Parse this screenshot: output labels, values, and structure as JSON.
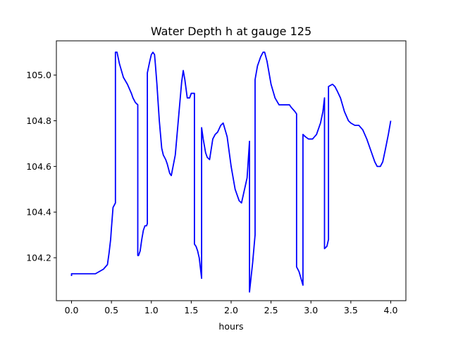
{
  "chart_data": {
    "type": "line",
    "title": "Water Depth h at gauge 125",
    "xlabel": "hours",
    "ylabel": "",
    "xlim": [
      -0.19,
      4.19
    ],
    "ylim": [
      104.012,
      105.15
    ],
    "xticks": [
      0.0,
      0.5,
      1.0,
      1.5,
      2.0,
      2.5,
      3.0,
      3.5,
      4.0
    ],
    "xtick_labels": [
      "0.0",
      "0.5",
      "1.0",
      "1.5",
      "2.0",
      "2.5",
      "3.0",
      "3.5",
      "4.0"
    ],
    "yticks": [
      104.2,
      104.4,
      104.6,
      104.8,
      105.0
    ],
    "ytick_labels": [
      "104.2",
      "104.4",
      "104.6",
      "104.8",
      "105.0"
    ],
    "grid": false,
    "series": [
      {
        "color": "#0000ff",
        "x": [
          0.0,
          0.0,
          0.1,
          0.2,
          0.3,
          0.35,
          0.4,
          0.45,
          0.47,
          0.49,
          0.5,
          0.52,
          0.55,
          0.55,
          0.57,
          0.6,
          0.65,
          0.7,
          0.75,
          0.77,
          0.8,
          0.83,
          0.83,
          0.84,
          0.86,
          0.88,
          0.9,
          0.92,
          0.94,
          0.95,
          0.95,
          0.98,
          1.0,
          1.02,
          1.04,
          1.05,
          1.07,
          1.1,
          1.13,
          1.15,
          1.18,
          1.2,
          1.23,
          1.25,
          1.3,
          1.35,
          1.38,
          1.4,
          1.42,
          1.45,
          1.48,
          1.5,
          1.52,
          1.54,
          1.54,
          1.56,
          1.58,
          1.6,
          1.63,
          1.63,
          1.65,
          1.68,
          1.7,
          1.73,
          1.77,
          1.8,
          1.83,
          1.87,
          1.9,
          1.95,
          2.0,
          2.05,
          2.1,
          2.13,
          2.2,
          2.23,
          2.23,
          2.27,
          2.3,
          2.3,
          2.33,
          2.37,
          2.4,
          2.42,
          2.45,
          2.5,
          2.55,
          2.6,
          2.65,
          2.7,
          2.73,
          2.75,
          2.8,
          2.82,
          2.82,
          2.85,
          2.9,
          2.9,
          2.93,
          2.97,
          3.02,
          3.07,
          3.12,
          3.15,
          3.17,
          3.17,
          3.2,
          3.22,
          3.22,
          3.27,
          3.3,
          3.33,
          3.37,
          3.42,
          3.47,
          3.5,
          3.55,
          3.58,
          3.6,
          3.65,
          3.7,
          3.75,
          3.8,
          3.83,
          3.87,
          3.9,
          3.93,
          3.97,
          4.0
        ],
        "y": [
          104.12,
          104.13,
          104.13,
          104.13,
          104.13,
          104.14,
          104.15,
          104.17,
          104.22,
          104.28,
          104.33,
          104.42,
          104.44,
          105.1,
          105.1,
          105.05,
          104.99,
          104.96,
          104.92,
          104.9,
          104.88,
          104.87,
          104.21,
          104.21,
          104.23,
          104.28,
          104.32,
          104.34,
          104.34,
          104.35,
          105.01,
          105.06,
          105.09,
          105.1,
          105.09,
          105.05,
          104.96,
          104.8,
          104.68,
          104.65,
          104.63,
          104.61,
          104.57,
          104.56,
          104.65,
          104.85,
          104.97,
          105.02,
          104.98,
          104.9,
          104.9,
          104.92,
          104.92,
          104.92,
          104.26,
          104.25,
          104.23,
          104.2,
          104.11,
          104.77,
          104.72,
          104.66,
          104.64,
          104.63,
          104.72,
          104.74,
          104.75,
          104.78,
          104.79,
          104.73,
          104.6,
          104.5,
          104.45,
          104.44,
          104.55,
          104.71,
          104.05,
          104.18,
          104.3,
          104.98,
          105.04,
          105.08,
          105.1,
          105.1,
          105.06,
          104.96,
          104.9,
          104.87,
          104.87,
          104.87,
          104.87,
          104.86,
          104.84,
          104.83,
          104.16,
          104.14,
          104.08,
          104.74,
          104.73,
          104.72,
          104.72,
          104.74,
          104.79,
          104.84,
          104.9,
          104.24,
          104.25,
          104.28,
          104.95,
          104.96,
          104.95,
          104.93,
          104.9,
          104.84,
          104.8,
          104.79,
          104.78,
          104.78,
          104.78,
          104.76,
          104.72,
          104.67,
          104.62,
          104.6,
          104.6,
          104.62,
          104.67,
          104.74,
          104.8
        ]
      }
    ]
  }
}
